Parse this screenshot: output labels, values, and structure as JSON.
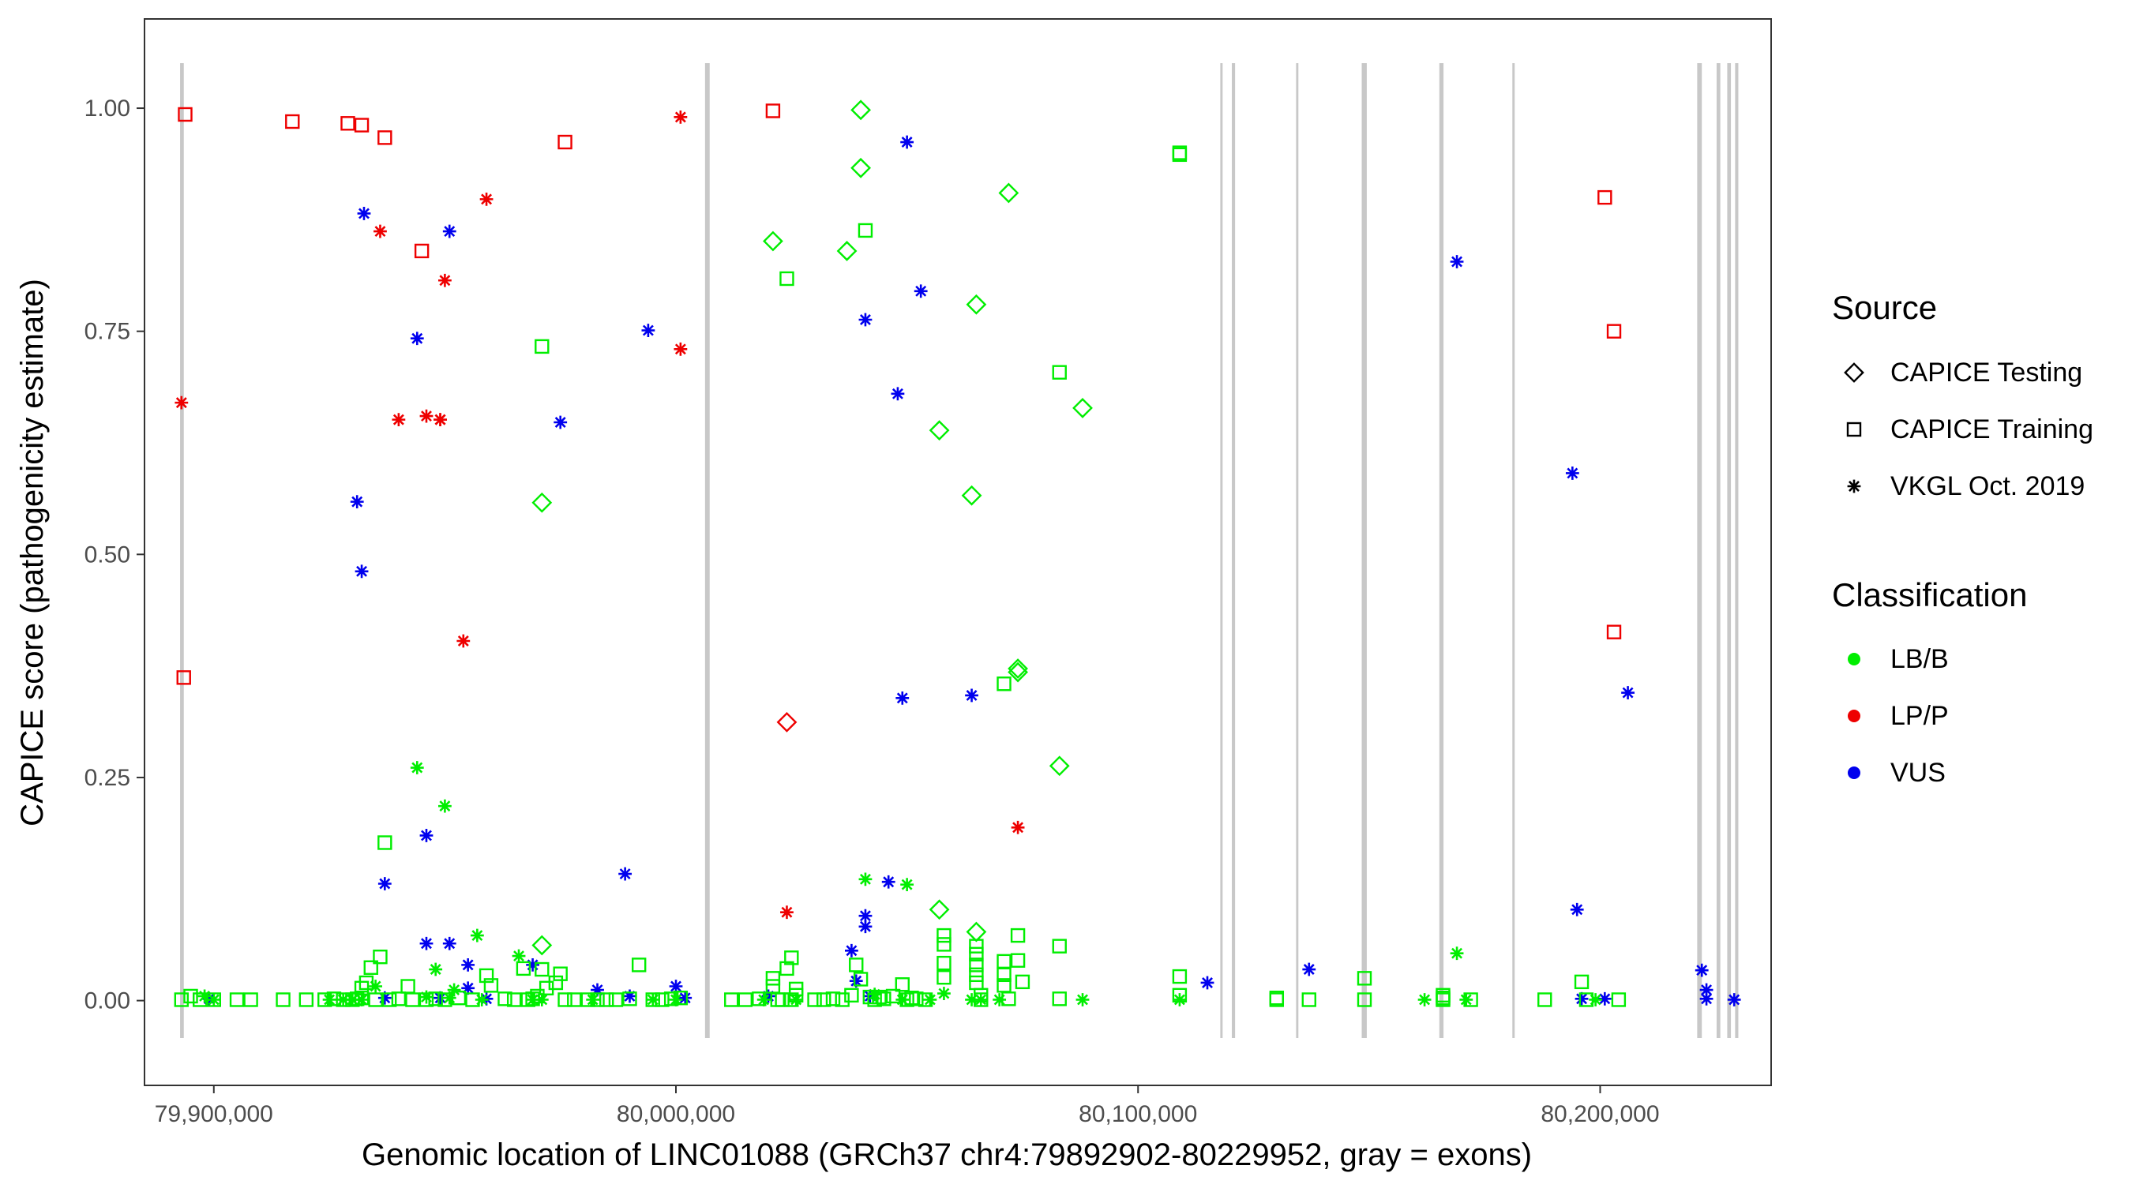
{
  "chart_data": {
    "type": "scatter",
    "title": "",
    "xlabel": "Genomic location of LINC01088 (GRCh37 chr4:79892902-80229952, gray = exons)",
    "ylabel": "CAPICE score (pathogenicity estimate)",
    "xlim": [
      79885000,
      80237000
    ],
    "ylim": [
      -0.095,
      1.1
    ],
    "x_ticks": [
      79900000,
      80000000,
      80100000,
      80200000
    ],
    "x_tick_labels": [
      "79,900,000",
      "80,000,000",
      "80,100,000",
      "80,200,000"
    ],
    "y_ticks": [
      0,
      0.25,
      0.5,
      0.75,
      1.0
    ],
    "y_tick_labels": [
      "0.00",
      "0.25",
      "0.50",
      "0.75",
      "1.00"
    ],
    "grid": false,
    "exons": [
      {
        "start": 79892700,
        "end": 79893500
      },
      {
        "start": 80006300,
        "end": 80007300
      },
      {
        "start": 80117800,
        "end": 80118300
      },
      {
        "start": 80120300,
        "end": 80121000
      },
      {
        "start": 80134200,
        "end": 80134700
      },
      {
        "start": 80148400,
        "end": 80149500
      },
      {
        "start": 80165200,
        "end": 80166100
      },
      {
        "start": 80181000,
        "end": 80181500
      },
      {
        "start": 80221000,
        "end": 80222000
      },
      {
        "start": 80225200,
        "end": 80226000
      },
      {
        "start": 80227500,
        "end": 80228300
      },
      {
        "start": 80229200,
        "end": 80229900
      }
    ],
    "legend": {
      "position": "right",
      "source_title": "Source",
      "source_items": [
        {
          "label": "CAPICE Testing",
          "shape": "diamond"
        },
        {
          "label": "CAPICE Training",
          "shape": "square"
        },
        {
          "label": "VKGL Oct. 2019",
          "shape": "asterisk"
        }
      ],
      "class_title": "Classification",
      "class_items": [
        {
          "label": "LB/B",
          "color": "#00ee00"
        },
        {
          "label": "LP/P",
          "color": "#ee0000"
        },
        {
          "label": "VUS",
          "color": "#0000ee"
        }
      ]
    },
    "series": [
      {
        "name": "LP/P CAPICE Training",
        "classification": "LP/P",
        "source": "CAPICE Training",
        "color": "#ee0000",
        "shape": "square",
        "x": [
          79893500,
          79893800,
          79917000,
          79929000,
          79932000,
          79937000,
          79945000,
          79976000,
          80021000,
          80201000,
          80203000,
          80203000
        ],
        "y": [
          0.362,
          0.993,
          0.985,
          0.983,
          0.981,
          0.967,
          0.84,
          0.962,
          0.997,
          0.9,
          0.75,
          0.413
        ]
      },
      {
        "name": "LP/P VKGL Oct. 2019",
        "classification": "LP/P",
        "source": "VKGL Oct. 2019",
        "color": "#ee0000",
        "shape": "asterisk",
        "x": [
          79893000,
          79936000,
          79940000,
          79946000,
          79949000,
          79950000,
          79949000,
          79954000,
          79959000,
          80001000,
          80001000,
          80024000,
          80074000
        ],
        "y": [
          0.67,
          0.862,
          0.651,
          0.655,
          0.651,
          0.807,
          0.651,
          0.403,
          0.898,
          0.99,
          0.73,
          0.099,
          0.194
        ]
      },
      {
        "name": "LP/P CAPICE Testing",
        "classification": "LP/P",
        "source": "CAPICE Testing",
        "color": "#ee0000",
        "shape": "diamond",
        "x": [
          80024000
        ],
        "y": [
          0.312
        ]
      },
      {
        "name": "VUS VKGL Oct. 2019",
        "classification": "VUS",
        "source": "VKGL Oct. 2019",
        "color": "#0000ee",
        "shape": "asterisk",
        "x": [
          79899000,
          79931000,
          79932000,
          79932500,
          79937000,
          79937000,
          79944000,
          79946000,
          79946000,
          79949000,
          79951000,
          79951000,
          79955000,
          79955000,
          79959000,
          79975000,
          79969000,
          79983000,
          79989000,
          79990000,
          79994000,
          80000000,
          80002000,
          80020000,
          80038000,
          80039000,
          80041000,
          80041000,
          80041000,
          80042000,
          80046000,
          80048000,
          80049000,
          80050000,
          80053000,
          80064000,
          80115000,
          80137000,
          80169000,
          80194000,
          80195000,
          80196000,
          80201000,
          80206000,
          80222000,
          80223000,
          80223000,
          80229000
        ],
        "y": [
          0.002,
          0.559,
          0.481,
          0.882,
          0.131,
          0.003,
          0.742,
          0.185,
          0.064,
          0.003,
          0.064,
          0.862,
          0.014,
          0.04,
          0.002,
          0.648,
          0.04,
          0.012,
          0.142,
          0.005,
          0.751,
          0.016,
          0.003,
          0.005,
          0.056,
          0.022,
          0.763,
          0.095,
          0.083,
          0.005,
          0.133,
          0.68,
          0.339,
          0.962,
          0.795,
          0.342,
          0.02,
          0.035,
          0.828,
          0.591,
          0.102,
          0.002,
          0.002,
          0.345,
          0.034,
          0.012,
          0.002,
          0.001
        ]
      },
      {
        "name": "LB/B CAPICE Testing",
        "classification": "LB/B",
        "source": "CAPICE Testing",
        "color": "#00ee00",
        "shape": "diamond",
        "x": [
          79971000,
          79971000,
          80021000,
          80037000,
          80040000,
          80040000,
          80057000,
          80057000,
          80064000,
          80065000,
          80065000,
          80072000,
          80074000,
          80074000,
          80083000,
          80088000
        ],
        "y": [
          0.558,
          0.062,
          0.851,
          0.84,
          0.998,
          0.933,
          0.639,
          0.102,
          0.566,
          0.78,
          0.077,
          0.905,
          0.372,
          0.368,
          0.263,
          0.664
        ]
      },
      {
        "name": "LB/B CAPICE Training",
        "classification": "LB/B",
        "source": "CAPICE Training",
        "color": "#00ee00",
        "shape": "square",
        "x": [
          79893000,
          79895000,
          79897000,
          79900000,
          79905000,
          79908000,
          79915000,
          79920000,
          79924000,
          79926000,
          79928000,
          79930000,
          79931000,
          79932000,
          79932000,
          79933000,
          79934000,
          79935000,
          79936000,
          79937000,
          79938000,
          79940000,
          79942000,
          79943000,
          79946000,
          79948000,
          79950000,
          79953000,
          79956000,
          79959000,
          79960000,
          79963000,
          79965000,
          79967000,
          79968000,
          79969000,
          79970000,
          79971000,
          79971000,
          79972000,
          79974000,
          79975000,
          79976000,
          79978000,
          79981000,
          79983000,
          79985000,
          79987000,
          79990000,
          79992000,
          79995000,
          79997000,
          79999000,
          80001000,
          80012000,
          80015000,
          80018000,
          80021000,
          80021000,
          80022000,
          80023000,
          80024000,
          80024000,
          80025000,
          80025000,
          80026000,
          80026000,
          80030000,
          80032000,
          80034000,
          80036000,
          80038000,
          80039000,
          80040000,
          80041000,
          80042000,
          80043000,
          80044000,
          80045000,
          80047000,
          80049000,
          80050000,
          80051000,
          80052000,
          80054000,
          80058000,
          80058000,
          80058000,
          80058000,
          80065000,
          80065000,
          80065000,
          80065000,
          80065000,
          80066000,
          80066000,
          80071000,
          80071000,
          80071000,
          80071000,
          80072000,
          80074000,
          80074000,
          80075000,
          80083000,
          80083000,
          80083000,
          80109000,
          80109000,
          80109000,
          80109000,
          80130000,
          80130000,
          80137000,
          80149000,
          80149000,
          80166000,
          80166000,
          80166000,
          80172000,
          80188000,
          80196000,
          80197000,
          80204000
        ],
        "y": [
          0.001,
          0.005,
          0.001,
          0.001,
          0.001,
          0.001,
          0.001,
          0.001,
          0.001,
          0.002,
          0.001,
          0.001,
          0.002,
          0.003,
          0.014,
          0.02,
          0.037,
          0.001,
          0.049,
          0.177,
          0.001,
          0.002,
          0.016,
          0.001,
          0.001,
          0.002,
          0.001,
          0.003,
          0.001,
          0.028,
          0.017,
          0.002,
          0.001,
          0.036,
          0.001,
          0.002,
          0.005,
          0.733,
          0.035,
          0.014,
          0.02,
          0.03,
          0.001,
          0.001,
          0.001,
          0.001,
          0.001,
          0.001,
          0.002,
          0.04,
          0.001,
          0.001,
          0.002,
          0.003,
          0.001,
          0.001,
          0.002,
          0.025,
          0.016,
          0.001,
          0.001,
          0.036,
          0.809,
          0.048,
          0.001,
          0.006,
          0.013,
          0.001,
          0.001,
          0.002,
          0.001,
          0.006,
          0.04,
          0.024,
          0.863,
          0.004,
          0.001,
          0.004,
          0.002,
          0.005,
          0.018,
          0.001,
          0.003,
          0.002,
          0.001,
          0.073,
          0.063,
          0.042,
          0.026,
          0.061,
          0.052,
          0.04,
          0.029,
          0.02,
          0.006,
          0.001,
          0.355,
          0.044,
          0.029,
          0.017,
          0.002,
          0.073,
          0.045,
          0.021,
          0.704,
          0.061,
          0.002,
          0.95,
          0.948,
          0.027,
          0.006,
          0.003,
          0.001,
          0.001,
          0.025,
          0.001,
          0.006,
          0.003,
          0.001,
          0.001,
          0.001,
          0.021,
          0.001,
          0.001
        ]
      },
      {
        "name": "LB/B VKGL Oct. 2019",
        "classification": "LB/B",
        "source": "VKGL Oct. 2019",
        "color": "#00ee00",
        "shape": "asterisk",
        "x": [
          79898000,
          79900000,
          79925000,
          79928000,
          79930000,
          79932000,
          79935000,
          79944000,
          79946000,
          79948000,
          79950000,
          79951000,
          79952000,
          79957000,
          79958000,
          79966000,
          79969000,
          79971000,
          79982000,
          79995000,
          80000000,
          80019000,
          80026000,
          80041000,
          80043000,
          80049000,
          80050000,
          80055000,
          80058000,
          80064000,
          80066000,
          80070000,
          80088000,
          80109000,
          80162000,
          80169000,
          80171000,
          80199000
        ],
        "y": [
          0.005,
          0.001,
          0.001,
          0.001,
          0.001,
          0.001,
          0.016,
          0.261,
          0.004,
          0.035,
          0.218,
          0.003,
          0.012,
          0.073,
          0.001,
          0.05,
          0.001,
          0.001,
          0.001,
          0.001,
          0.001,
          0.001,
          0.001,
          0.136,
          0.007,
          0.001,
          0.13,
          0.001,
          0.008,
          0.001,
          0.001,
          0.001,
          0.001,
          0.001,
          0.001,
          0.053,
          0.001,
          0.001
        ]
      }
    ]
  }
}
